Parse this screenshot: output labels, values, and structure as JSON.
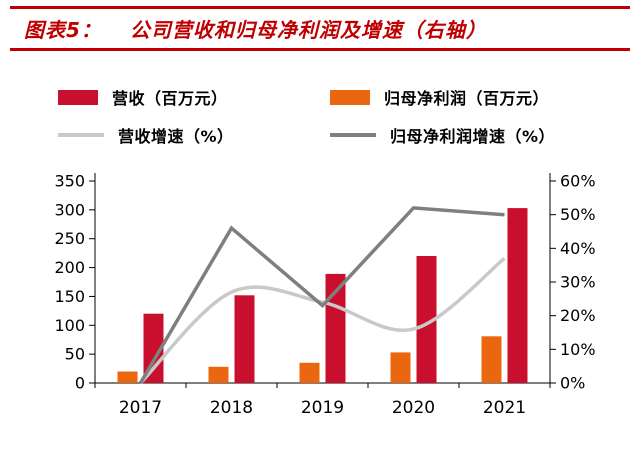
{
  "header": {
    "label": "图表5：",
    "title": "公司营收和归母净利润及增速（右轴）",
    "accent_color": "#c00000"
  },
  "legend": [
    {
      "label": "营收（百万元）",
      "swatch": "bar",
      "color": "#c8102e"
    },
    {
      "label": "归母净利润（百万元）",
      "swatch": "bar",
      "color": "#ea670f"
    },
    {
      "label": "营收增速（%）",
      "swatch": "line",
      "color": "#c9c9c9"
    },
    {
      "label": "归母净利润增速（%）",
      "swatch": "line",
      "color": "#7f7f7f"
    }
  ],
  "chart_data": {
    "type": "combo-bar-line",
    "categories": [
      "2017",
      "2018",
      "2019",
      "2020",
      "2021"
    ],
    "series": [
      {
        "name": "营收（百万元）",
        "type": "bar",
        "axis": "left",
        "slot": 1,
        "color": "#c8102e",
        "values": [
          120,
          152,
          189,
          220,
          303
        ]
      },
      {
        "name": "归母净利润（百万元）",
        "type": "bar",
        "axis": "left",
        "slot": 0,
        "color": "#ea670f",
        "values": [
          20,
          28,
          35,
          53,
          81
        ]
      },
      {
        "name": "营收增速（%）",
        "type": "line",
        "axis": "right",
        "smooth": true,
        "color": "#c9c9c9",
        "values": [
          0,
          27,
          24,
          16,
          37
        ]
      },
      {
        "name": "归母净利润增速（%）",
        "type": "line",
        "axis": "right",
        "smooth": false,
        "color": "#7f7f7f",
        "values": [
          0,
          46,
          23,
          52,
          50
        ]
      }
    ],
    "left_axis": {
      "min": 0,
      "max": 350,
      "step": 50,
      "suffix": ""
    },
    "right_axis": {
      "min": 0,
      "max": 60,
      "step": 10,
      "suffix": "%"
    },
    "grid": false,
    "legend_position": "top"
  }
}
